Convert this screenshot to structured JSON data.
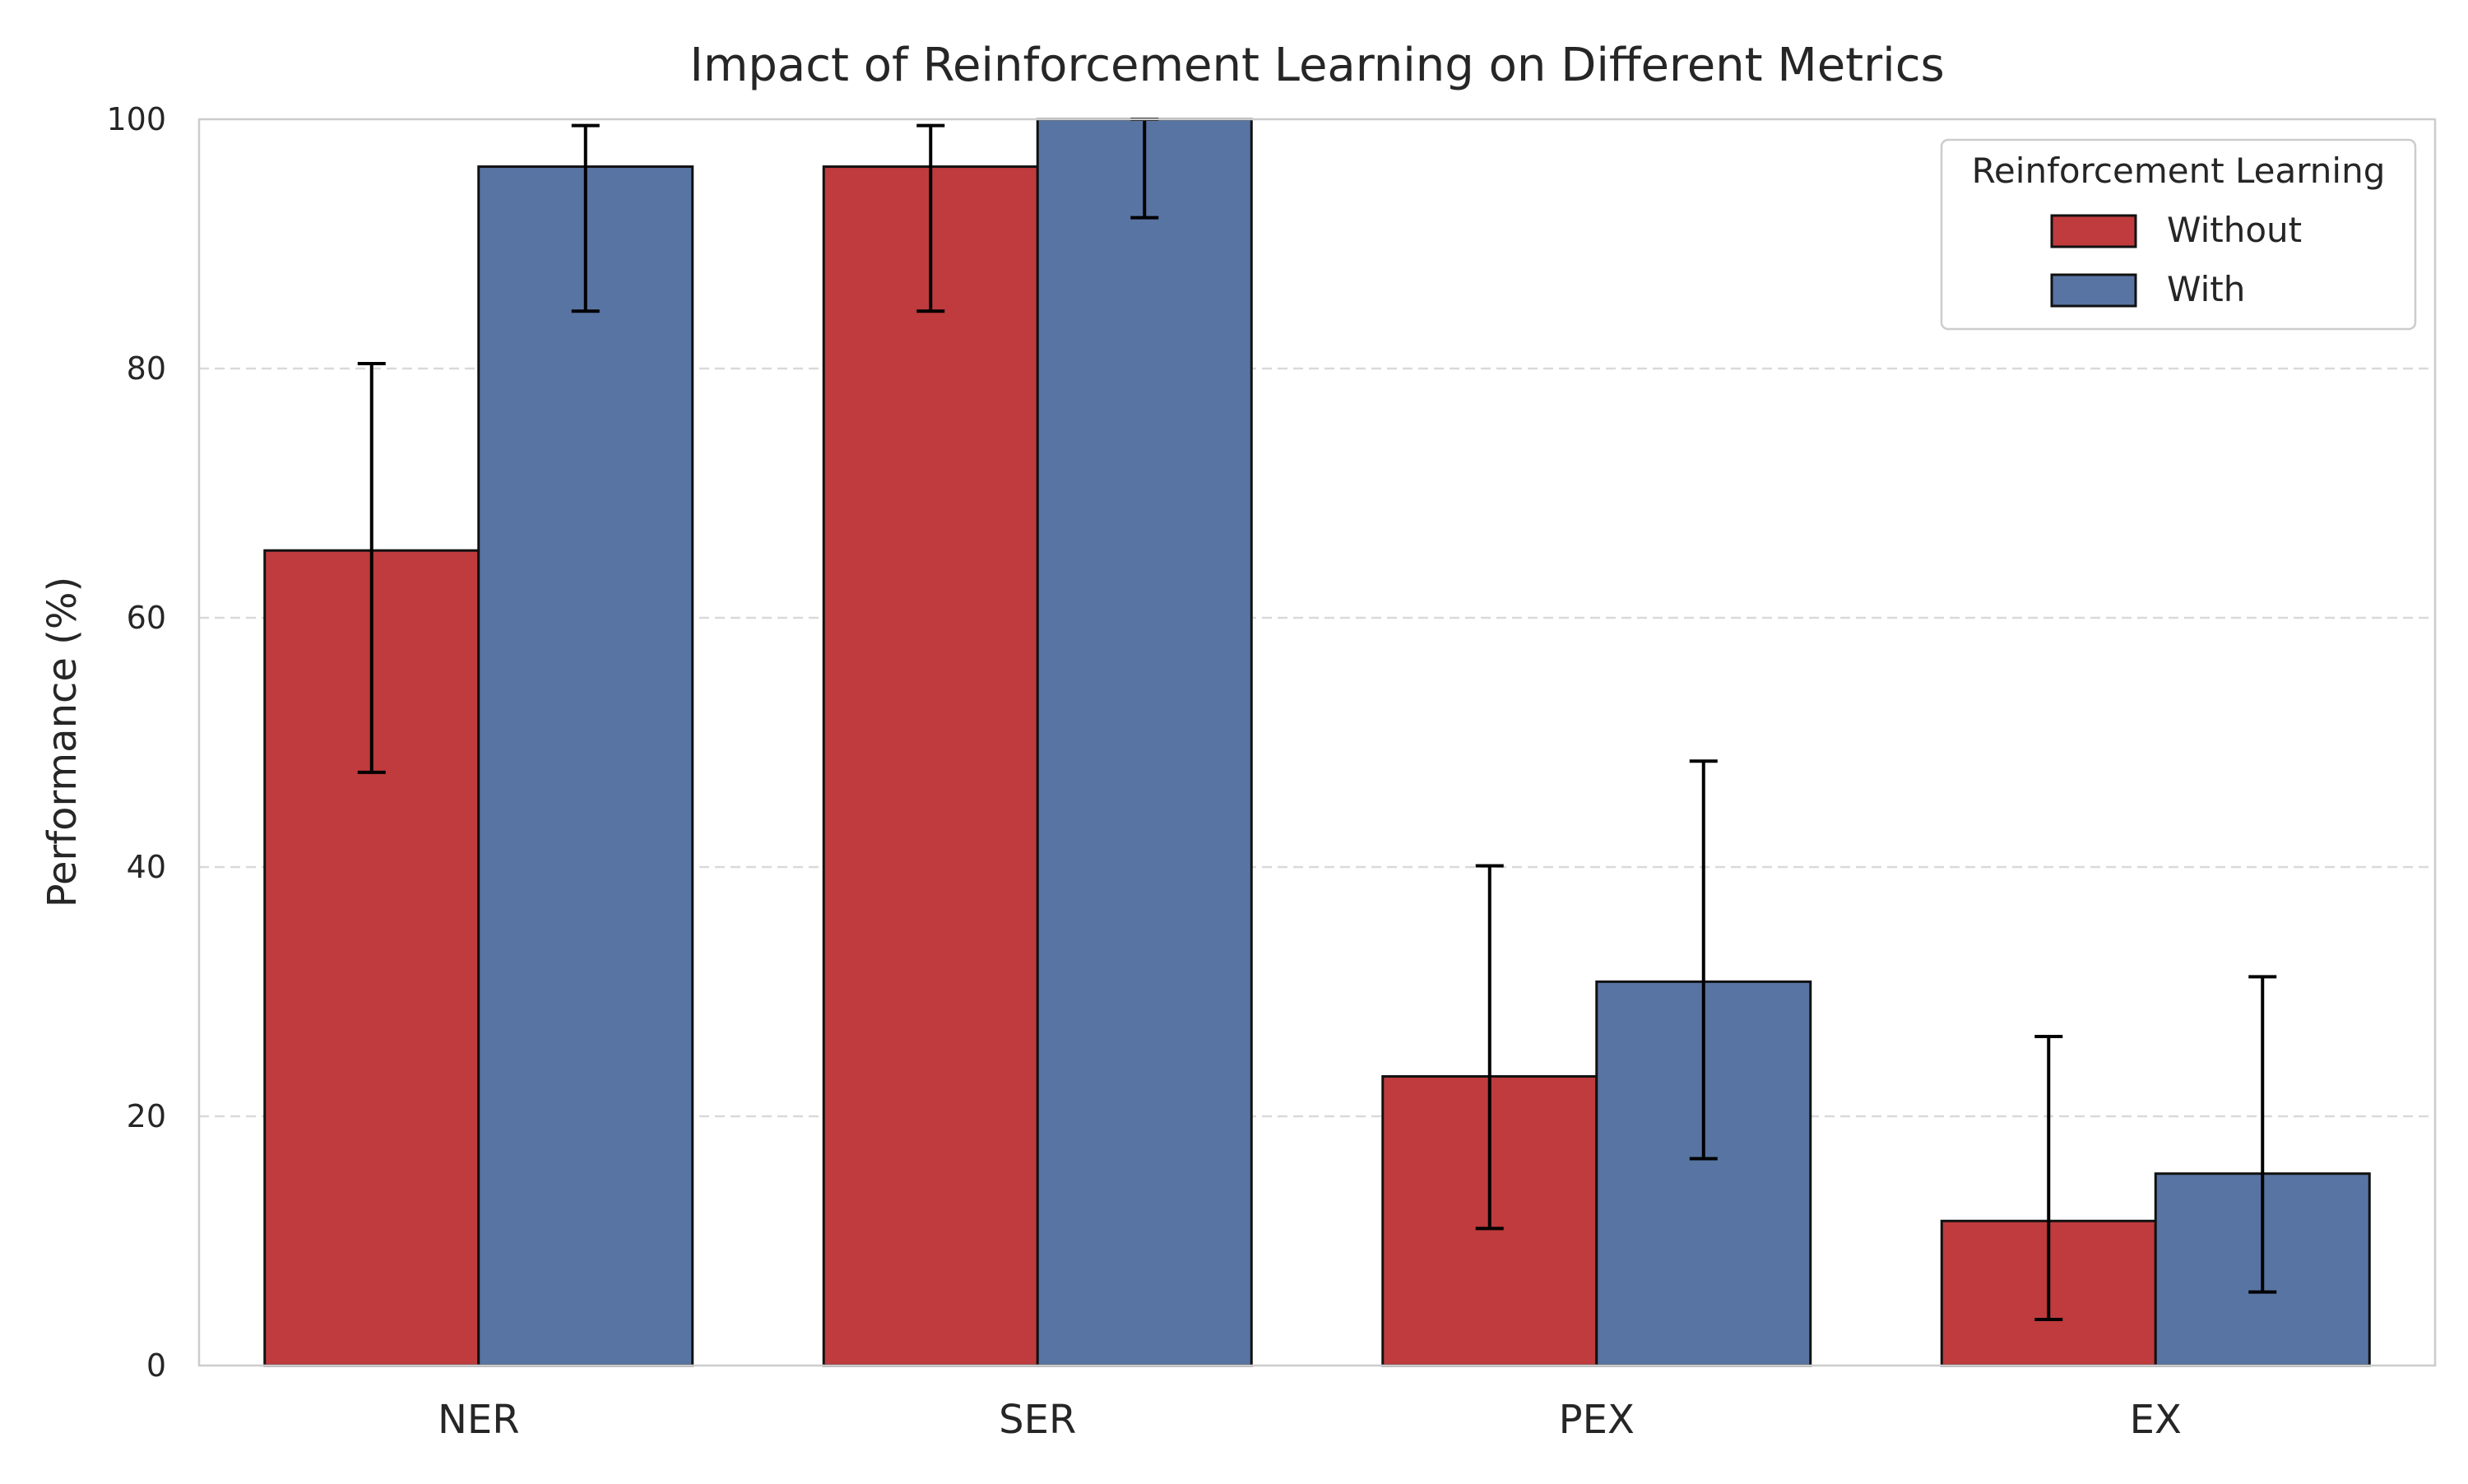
{
  "chart_data": {
    "type": "bar",
    "title": "Impact of Reinforcement Learning on Different Metrics",
    "xlabel": "",
    "ylabel": "Performance (%)",
    "ylim": [
      0,
      100
    ],
    "yticks": [
      0,
      20,
      40,
      60,
      80,
      100
    ],
    "grid": "y-dashed",
    "categories": [
      "NER",
      "SER",
      "PEX",
      "EX"
    ],
    "series": [
      {
        "name": "Without",
        "color": "#bf3b3d",
        "values": [
          65.4,
          96.2,
          23.2,
          11.6
        ],
        "error_low": [
          47.6,
          84.6,
          11.0,
          3.7
        ],
        "error_high": [
          80.4,
          99.5,
          40.1,
          26.4
        ]
      },
      {
        "name": "With",
        "color": "#5874a3",
        "values": [
          96.2,
          100.0,
          30.8,
          15.4
        ],
        "error_low": [
          84.6,
          92.1,
          16.6,
          5.9
        ],
        "error_high": [
          99.5,
          100.0,
          48.5,
          31.2
        ]
      }
    ],
    "legend": {
      "title": "Reinforcement Learning",
      "position": "top-right"
    }
  }
}
